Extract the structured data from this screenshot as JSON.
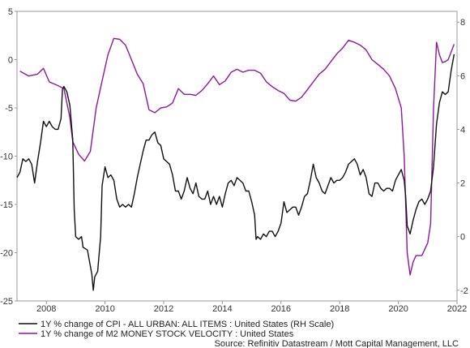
{
  "chart_data": {
    "type": "line",
    "title": "",
    "xlabel": "",
    "ylabel": "",
    "xlim": [
      2007.0,
      2022.0
    ],
    "x_ticks": [
      "2008",
      "2010",
      "2012",
      "2014",
      "2016",
      "2018",
      "2020",
      "2022"
    ],
    "y_left": {
      "lim": [
        -25,
        5
      ],
      "ticks": [
        "5",
        "0",
        "-5",
        "-10",
        "-15",
        "-20",
        "-25"
      ]
    },
    "y_right": {
      "lim": [
        -2.4,
        8.4
      ],
      "ticks": [
        "8",
        "6",
        "4",
        "2",
        "0",
        "-2"
      ]
    },
    "grid": false,
    "legend_position": "bottom-left",
    "series": [
      {
        "name": "1Y % change of CPI - ALL URBAN: ALL ITEMS : United States (RH Scale)",
        "axis": "right",
        "color": "#111111",
        "points": [
          [
            2007.0,
            2.2
          ],
          [
            2007.1,
            2.4
          ],
          [
            2007.2,
            2.9
          ],
          [
            2007.3,
            2.8
          ],
          [
            2007.4,
            2.9
          ],
          [
            2007.5,
            2.7
          ],
          [
            2007.6,
            2.0
          ],
          [
            2007.7,
            2.8
          ],
          [
            2007.8,
            3.5
          ],
          [
            2007.9,
            4.3
          ],
          [
            2008.0,
            4.1
          ],
          [
            2008.1,
            4.3
          ],
          [
            2008.2,
            4.1
          ],
          [
            2008.3,
            4.0
          ],
          [
            2008.4,
            4.0
          ],
          [
            2008.5,
            4.4
          ],
          [
            2008.55,
            5.5
          ],
          [
            2008.6,
            5.6
          ],
          [
            2008.7,
            5.4
          ],
          [
            2008.8,
            4.9
          ],
          [
            2008.9,
            3.6
          ],
          [
            2008.95,
            1.0
          ],
          [
            2009.0,
            0.0
          ],
          [
            2009.1,
            -0.1
          ],
          [
            2009.2,
            0.0
          ],
          [
            2009.25,
            -0.4
          ],
          [
            2009.4,
            -0.5
          ],
          [
            2009.5,
            -1.1
          ],
          [
            2009.55,
            -1.4
          ],
          [
            2009.6,
            -2.0
          ],
          [
            2009.65,
            -1.5
          ],
          [
            2009.7,
            -1.4
          ],
          [
            2009.75,
            -1.3
          ],
          [
            2009.85,
            0.0
          ],
          [
            2009.9,
            1.9
          ],
          [
            2010.0,
            2.6
          ],
          [
            2010.1,
            2.2
          ],
          [
            2010.2,
            2.3
          ],
          [
            2010.3,
            2.1
          ],
          [
            2010.4,
            1.4
          ],
          [
            2010.5,
            1.1
          ],
          [
            2010.6,
            1.2
          ],
          [
            2010.7,
            1.1
          ],
          [
            2010.8,
            1.2
          ],
          [
            2010.9,
            1.1
          ],
          [
            2011.0,
            1.6
          ],
          [
            2011.1,
            2.2
          ],
          [
            2011.2,
            2.7
          ],
          [
            2011.3,
            3.2
          ],
          [
            2011.4,
            3.6
          ],
          [
            2011.5,
            3.6
          ],
          [
            2011.6,
            3.8
          ],
          [
            2011.7,
            3.9
          ],
          [
            2011.8,
            3.5
          ],
          [
            2011.9,
            3.4
          ],
          [
            2012.0,
            2.9
          ],
          [
            2012.1,
            2.8
          ],
          [
            2012.2,
            2.7
          ],
          [
            2012.3,
            2.3
          ],
          [
            2012.4,
            1.7
          ],
          [
            2012.5,
            1.7
          ],
          [
            2012.6,
            1.4
          ],
          [
            2012.7,
            1.7
          ],
          [
            2012.8,
            2.2
          ],
          [
            2012.9,
            1.8
          ],
          [
            2013.0,
            1.6
          ],
          [
            2013.1,
            2.0
          ],
          [
            2013.2,
            1.5
          ],
          [
            2013.3,
            1.4
          ],
          [
            2013.4,
            1.4
          ],
          [
            2013.5,
            1.7
          ],
          [
            2013.6,
            1.2
          ],
          [
            2013.7,
            1.5
          ],
          [
            2013.8,
            1.2
          ],
          [
            2013.9,
            1.5
          ],
          [
            2014.0,
            1.1
          ],
          [
            2014.1,
            1.6
          ],
          [
            2014.2,
            2.0
          ],
          [
            2014.3,
            2.1
          ],
          [
            2014.4,
            1.9
          ],
          [
            2014.5,
            2.2
          ],
          [
            2014.6,
            2.1
          ],
          [
            2014.7,
            2.0
          ],
          [
            2014.8,
            1.7
          ],
          [
            2014.9,
            1.7
          ],
          [
            2015.0,
            1.3
          ],
          [
            2015.1,
            0.8
          ],
          [
            2015.15,
            -0.1
          ],
          [
            2015.2,
            0.0
          ],
          [
            2015.3,
            -0.1
          ],
          [
            2015.4,
            0.1
          ],
          [
            2015.5,
            0.0
          ],
          [
            2015.6,
            0.2
          ],
          [
            2015.7,
            0.2
          ],
          [
            2015.8,
            0.0
          ],
          [
            2015.9,
            0.2
          ],
          [
            2016.0,
            0.5
          ],
          [
            2016.1,
            1.3
          ],
          [
            2016.2,
            0.9
          ],
          [
            2016.3,
            1.0
          ],
          [
            2016.4,
            1.1
          ],
          [
            2016.5,
            1.1
          ],
          [
            2016.6,
            0.8
          ],
          [
            2016.7,
            1.1
          ],
          [
            2016.8,
            1.5
          ],
          [
            2016.9,
            1.6
          ],
          [
            2017.0,
            2.1
          ],
          [
            2017.1,
            2.7
          ],
          [
            2017.2,
            2.2
          ],
          [
            2017.3,
            2.0
          ],
          [
            2017.4,
            1.7
          ],
          [
            2017.5,
            1.6
          ],
          [
            2017.6,
            1.9
          ],
          [
            2017.7,
            2.2
          ],
          [
            2017.8,
            2.0
          ],
          [
            2017.9,
            2.1
          ],
          [
            2018.0,
            2.1
          ],
          [
            2018.1,
            2.2
          ],
          [
            2018.2,
            2.4
          ],
          [
            2018.3,
            2.7
          ],
          [
            2018.4,
            2.8
          ],
          [
            2018.5,
            2.9
          ],
          [
            2018.6,
            2.7
          ],
          [
            2018.7,
            2.3
          ],
          [
            2018.8,
            2.5
          ],
          [
            2018.9,
            2.2
          ],
          [
            2019.0,
            1.6
          ],
          [
            2019.1,
            1.5
          ],
          [
            2019.2,
            2.0
          ],
          [
            2019.3,
            2.0
          ],
          [
            2019.4,
            1.8
          ],
          [
            2019.5,
            1.7
          ],
          [
            2019.6,
            1.8
          ],
          [
            2019.7,
            1.8
          ],
          [
            2019.8,
            1.7
          ],
          [
            2019.9,
            2.1
          ],
          [
            2020.0,
            2.3
          ],
          [
            2020.1,
            2.5
          ],
          [
            2020.2,
            2.1
          ],
          [
            2020.25,
            1.5
          ],
          [
            2020.3,
            0.4
          ],
          [
            2020.4,
            0.1
          ],
          [
            2020.5,
            0.6
          ],
          [
            2020.6,
            1.0
          ],
          [
            2020.7,
            1.3
          ],
          [
            2020.8,
            1.4
          ],
          [
            2020.9,
            1.2
          ],
          [
            2021.0,
            1.4
          ],
          [
            2021.1,
            1.7
          ],
          [
            2021.2,
            2.6
          ],
          [
            2021.3,
            4.2
          ],
          [
            2021.4,
            5.0
          ],
          [
            2021.5,
            5.4
          ],
          [
            2021.6,
            5.3
          ],
          [
            2021.7,
            5.4
          ],
          [
            2021.8,
            6.2
          ],
          [
            2021.9,
            6.8
          ]
        ]
      },
      {
        "name": "1Y % change of M2 MONEY STOCK VELOCITY : United States",
        "axis": "left",
        "color": "#8a1a9b",
        "points": [
          [
            2007.1,
            -1.2
          ],
          [
            2007.4,
            -1.7
          ],
          [
            2007.7,
            -1.5
          ],
          [
            2007.9,
            -0.9
          ],
          [
            2008.1,
            -2.3
          ],
          [
            2008.4,
            -2.7
          ],
          [
            2008.6,
            -3.0
          ],
          [
            2008.8,
            -6.0
          ],
          [
            2008.9,
            -8.5
          ],
          [
            2009.1,
            -9.8
          ],
          [
            2009.3,
            -10.5
          ],
          [
            2009.5,
            -9.5
          ],
          [
            2009.7,
            -5.0
          ],
          [
            2009.9,
            -2.2
          ],
          [
            2010.1,
            0.5
          ],
          [
            2010.3,
            2.2
          ],
          [
            2010.5,
            2.1
          ],
          [
            2010.7,
            1.5
          ],
          [
            2010.9,
            0.0
          ],
          [
            2011.1,
            -1.5
          ],
          [
            2011.3,
            -2.5
          ],
          [
            2011.5,
            -5.2
          ],
          [
            2011.7,
            -5.5
          ],
          [
            2011.9,
            -5.0
          ],
          [
            2012.1,
            -4.9
          ],
          [
            2012.3,
            -4.5
          ],
          [
            2012.5,
            -3.0
          ],
          [
            2012.7,
            -3.6
          ],
          [
            2012.9,
            -3.6
          ],
          [
            2013.1,
            -3.7
          ],
          [
            2013.3,
            -3.2
          ],
          [
            2013.5,
            -2.5
          ],
          [
            2013.7,
            -1.7
          ],
          [
            2013.9,
            -2.6
          ],
          [
            2014.1,
            -2.2
          ],
          [
            2014.3,
            -1.3
          ],
          [
            2014.5,
            -1.0
          ],
          [
            2014.7,
            -1.3
          ],
          [
            2014.9,
            -1.1
          ],
          [
            2015.1,
            -1.1
          ],
          [
            2015.3,
            -1.4
          ],
          [
            2015.5,
            -2.3
          ],
          [
            2015.7,
            -2.8
          ],
          [
            2015.9,
            -3.2
          ],
          [
            2016.1,
            -3.5
          ],
          [
            2016.3,
            -4.2
          ],
          [
            2016.5,
            -4.3
          ],
          [
            2016.7,
            -3.9
          ],
          [
            2016.9,
            -3.1
          ],
          [
            2017.1,
            -2.3
          ],
          [
            2017.3,
            -1.5
          ],
          [
            2017.5,
            -1.0
          ],
          [
            2017.7,
            -0.2
          ],
          [
            2017.9,
            0.6
          ],
          [
            2018.1,
            1.2
          ],
          [
            2018.3,
            2.0
          ],
          [
            2018.5,
            1.8
          ],
          [
            2018.7,
            1.5
          ],
          [
            2018.9,
            1.0
          ],
          [
            2019.1,
            0.0
          ],
          [
            2019.3,
            -0.5
          ],
          [
            2019.5,
            -1.0
          ],
          [
            2019.7,
            -1.7
          ],
          [
            2019.9,
            -3.0
          ],
          [
            2020.1,
            -5.0
          ],
          [
            2020.2,
            -10.0
          ],
          [
            2020.3,
            -20.0
          ],
          [
            2020.4,
            -22.3
          ],
          [
            2020.5,
            -21.0
          ],
          [
            2020.6,
            -20.3
          ],
          [
            2020.8,
            -20.3
          ],
          [
            2021.0,
            -19.0
          ],
          [
            2021.1,
            -17.0
          ],
          [
            2021.2,
            -5.0
          ],
          [
            2021.3,
            1.8
          ],
          [
            2021.4,
            0.5
          ],
          [
            2021.5,
            -0.3
          ],
          [
            2021.6,
            -0.2
          ],
          [
            2021.7,
            0.0
          ],
          [
            2021.9,
            1.6
          ]
        ]
      }
    ],
    "source": "Source: Refinitiv Datastream / Mott Capital Management, LLC"
  }
}
